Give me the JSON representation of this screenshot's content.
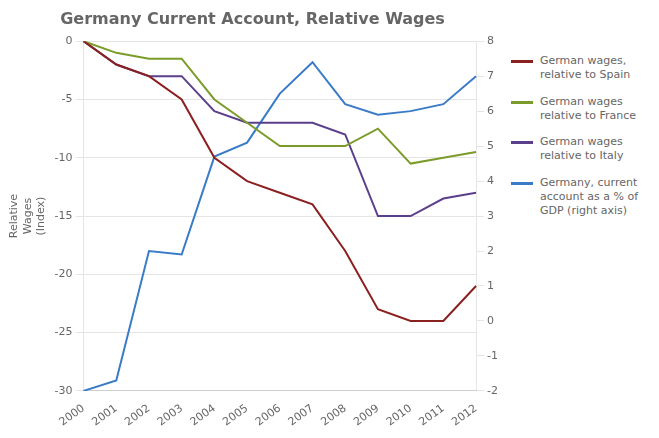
{
  "chart_data": {
    "type": "line",
    "title": "Germany Current Account, Relative Wages",
    "categories": [
      2000,
      2001,
      2002,
      2003,
      2004,
      2005,
      2006,
      2007,
      2008,
      2009,
      2010,
      2011,
      2012
    ],
    "series": [
      {
        "name": "German wages,\nrelative to Spain",
        "color": "#8B2020",
        "values": [
          0,
          -2,
          -3,
          -5,
          -10,
          -12,
          -13,
          -14,
          -18,
          -23,
          -24,
          -24,
          -21
        ]
      },
      {
        "name": "German wages\nrelative to France",
        "color": "#7B9C2A",
        "values": [
          0,
          -1,
          -1.5,
          -1.5,
          -5,
          -7,
          -9,
          -9,
          -9,
          -7.5,
          -10.5,
          -10,
          -9.5
        ]
      },
      {
        "name": "German wages\nrelative to Italy",
        "color": "#5B3F8C",
        "values": [
          0,
          -2,
          -3,
          -3,
          -6,
          -7,
          -7,
          -7,
          -8,
          -15,
          -15,
          -13.5,
          -13
        ]
      },
      {
        "name": "Germany, current\naccount as a % of\nGDP (right axis)",
        "color": "#3A7BC8",
        "axis": "y2",
        "values": [
          -2.0,
          -1.7,
          2.0,
          1.9,
          4.7,
          5.1,
          6.5,
          7.4,
          6.2,
          5.9,
          6.0,
          6.2,
          7.0
        ]
      }
    ],
    "ylabel": "Relative\nWages\n(Index)",
    "ylim": [
      -30,
      0
    ],
    "yticks": [
      0,
      -5,
      -10,
      -15,
      -20,
      -25,
      -30
    ],
    "y2lim": [
      -2,
      8
    ],
    "y2ticks": [
      -2,
      -1,
      0,
      1,
      2,
      3,
      4,
      5,
      6,
      7,
      8
    ],
    "grid": true,
    "legend": "right"
  }
}
